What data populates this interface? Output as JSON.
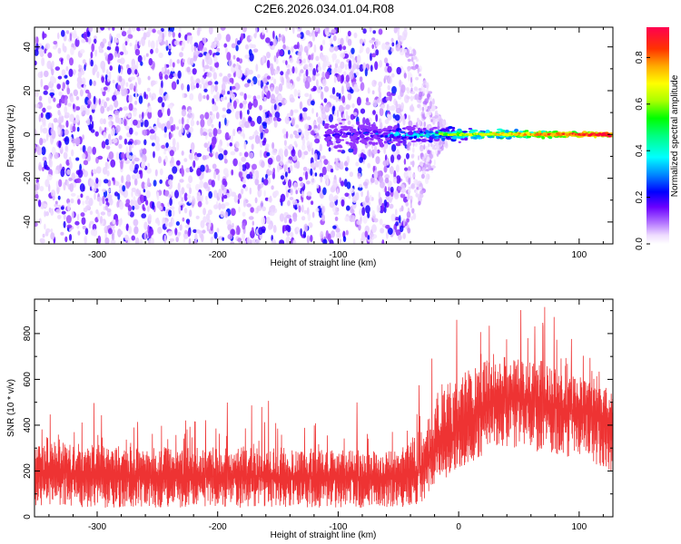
{
  "title": "C2E6.2026.034.01.04.R08",
  "chart_data": [
    {
      "type": "heatmap",
      "name": "spectrogram",
      "xlabel": "Height of straight line (km)",
      "ylabel": "Frequency (Hz)",
      "xlim": [
        -352,
        128
      ],
      "ylim": [
        -50,
        49
      ],
      "xticks": [
        -300,
        -200,
        -100,
        0,
        100
      ],
      "xtick_labels": [
        "-300",
        "-200",
        "-100",
        "0",
        "100"
      ],
      "yticks": [
        -40,
        -20,
        0,
        20,
        40
      ],
      "ytick_labels": [
        "-40",
        "-20",
        "0",
        "20",
        "40"
      ],
      "colorbar": {
        "label": "Normalized spectral amplitude",
        "range": [
          0.0,
          0.93
        ],
        "ticks": [
          0.0,
          0.2,
          0.4,
          0.6,
          0.8
        ],
        "tick_labels": [
          "0.0",
          "0.2",
          "0.4",
          "0.6",
          "0.8"
        ],
        "colormap": [
          "#ffffff",
          "#e6ccff",
          "#9a3cff",
          "#5a00ff",
          "#0000ff",
          "#00aaff",
          "#00ffff",
          "#00ff66",
          "#00ff00",
          "#aaff00",
          "#ffff00",
          "#ffaa00",
          "#ff4400",
          "#ff0040"
        ]
      },
      "regions": [
        {
          "x": [
            -352,
            -42
          ],
          "freq_spread": [
            -50,
            49
          ],
          "amplitude": [
            0.05,
            0.3
          ],
          "description": "broadband noise"
        },
        {
          "x": [
            -42,
            -10
          ],
          "freq_spread": [
            -45,
            45
          ],
          "amplitude": [
            0.02,
            0.12
          ],
          "description": "fading noise"
        },
        {
          "x": [
            -110,
            128
          ],
          "freq_center": 0,
          "amplitude": [
            0.3,
            0.93
          ],
          "description": "narrow carrier line near 0 Hz"
        }
      ]
    },
    {
      "type": "line",
      "name": "snr",
      "xlabel": "Height of straight line (km)",
      "ylabel": "SNR (10 * v/v)",
      "xlim": [
        -352,
        128
      ],
      "ylim": [
        0,
        950
      ],
      "xticks": [
        -300,
        -200,
        -100,
        0,
        100
      ],
      "xtick_labels": [
        "-300",
        "-200",
        "-100",
        "0",
        "100"
      ],
      "yticks": [
        0,
        200,
        400,
        600,
        800
      ],
      "ytick_labels": [
        "0",
        "200",
        "400",
        "600",
        "800"
      ],
      "series": [
        {
          "name": "SNR",
          "color": "#ee3333",
          "x": [
            -350,
            -300,
            -250,
            -200,
            -150,
            -100,
            -50,
            -30,
            -20,
            -10,
            0,
            10,
            20,
            30,
            40,
            50,
            60,
            70,
            80,
            90,
            100,
            110,
            125
          ],
          "mean": [
            200,
            185,
            180,
            178,
            175,
            172,
            170,
            200,
            290,
            350,
            390,
            430,
            480,
            510,
            520,
            510,
            500,
            490,
            480,
            470,
            460,
            450,
            430
          ],
          "low": [
            50,
            40,
            40,
            40,
            40,
            40,
            40,
            60,
            120,
            170,
            200,
            230,
            270,
            300,
            300,
            300,
            290,
            280,
            270,
            260,
            250,
            240,
            200
          ],
          "high": [
            480,
            420,
            400,
            420,
            410,
            400,
            380,
            550,
            700,
            760,
            800,
            820,
            830,
            860,
            840,
            830,
            820,
            800,
            780,
            760,
            720,
            700,
            650
          ]
        }
      ]
    }
  ]
}
